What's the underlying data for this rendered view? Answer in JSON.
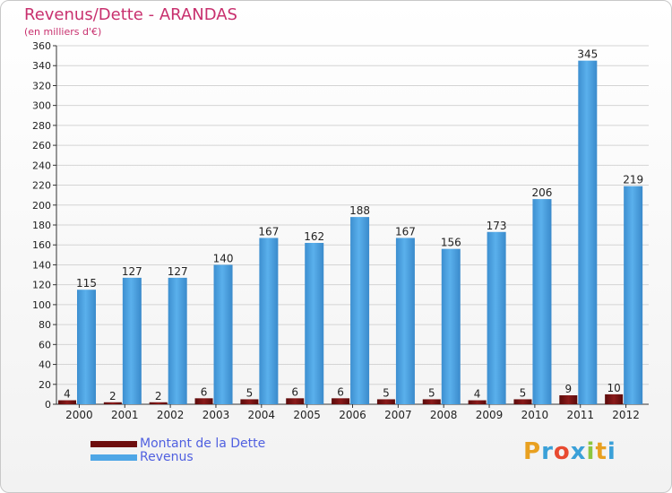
{
  "colors": {
    "title": "#c8306e",
    "debt": "#6e0e0e",
    "revenue": "#4ea6e6",
    "legend_text": "#5060e0",
    "axis": "#333333",
    "grid": "#d4d4d4"
  },
  "chart_data": {
    "type": "bar",
    "title": "Revenus/Dette - ARANDAS",
    "subtitle": "(en milliers d'€)",
    "categories": [
      "2000",
      "2001",
      "2002",
      "2003",
      "2004",
      "2005",
      "2006",
      "2007",
      "2008",
      "2009",
      "2010",
      "2011",
      "2012"
    ],
    "series": [
      {
        "name": "Montant de la Dette",
        "color": "#6e0e0e",
        "values": [
          4,
          2,
          2,
          6,
          5,
          6,
          6,
          5,
          5,
          4,
          5,
          9,
          10
        ]
      },
      {
        "name": "Revenus",
        "color": "#4ea6e6",
        "values": [
          115,
          127,
          127,
          140,
          167,
          162,
          188,
          167,
          156,
          173,
          206,
          345,
          219
        ]
      }
    ],
    "ylim": [
      0,
      360
    ],
    "ytick_step": 20,
    "xlabel": "",
    "ylabel": "",
    "grid": true,
    "legend_position": "bottom-left"
  },
  "legend": {
    "items": [
      {
        "label": "Montant de la Dette",
        "color": "#6e0e0e"
      },
      {
        "label": "Revenus",
        "color": "#4ea6e6"
      }
    ]
  },
  "logo": {
    "letters": [
      "P",
      "r",
      "o",
      "x",
      "i",
      "t",
      "i"
    ],
    "colors": [
      "#e8a020",
      "#3aa0d8",
      "#e84a30",
      "#3aa0d8",
      "#8cc63f",
      "#e8a020",
      "#3aa0d8"
    ]
  }
}
